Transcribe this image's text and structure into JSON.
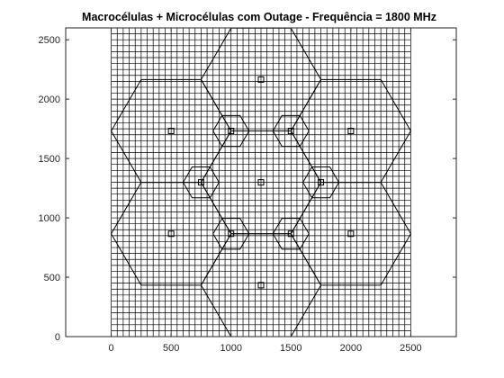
{
  "window": {
    "title": "Macrocélulas + Microcélulas com Outage - Frequência  = 1800 MHz"
  },
  "chart_data": {
    "type": "scatter",
    "title": "Macrocélulas + Microcélulas com Outage - Frequência  = 1800 MHz",
    "xlabel": "",
    "ylabel": "",
    "xlim": [
      -380,
      2880
    ],
    "ylim": [
      0,
      2600
    ],
    "xticks": [
      0,
      500,
      1000,
      1500,
      2000,
      2500
    ],
    "yticks": [
      0,
      500,
      1000,
      1500,
      2000,
      2500
    ],
    "grid": "uniform mesh over x 0–2500, y 0–2600, step 50",
    "grid_spacing": 50,
    "grid_extent": {
      "x": [
        0,
        2500
      ],
      "y": [
        0,
        2600
      ]
    },
    "macro_cells": {
      "shape": "hexagon (flat-top)",
      "radius": 500,
      "centers": [
        [
          1250,
          2165
        ],
        [
          500,
          1732
        ],
        [
          2000,
          1732
        ],
        [
          1250,
          1299
        ],
        [
          500,
          866
        ],
        [
          2000,
          866
        ],
        [
          1250,
          433
        ]
      ]
    },
    "micro_cells": {
      "shape": "hexagon (flat-top)",
      "radius": 150,
      "centers": [
        [
          1000,
          1732
        ],
        [
          1500,
          1732
        ],
        [
          750,
          1299
        ],
        [
          1750,
          1299
        ],
        [
          1000,
          866
        ],
        [
          1500,
          866
        ]
      ]
    },
    "station_markers": {
      "marker": "square",
      "points": [
        [
          1250,
          2165
        ],
        [
          500,
          1732
        ],
        [
          2000,
          1732
        ],
        [
          1250,
          1299
        ],
        [
          500,
          866
        ],
        [
          2000,
          866
        ],
        [
          1250,
          433
        ],
        [
          1000,
          1732
        ],
        [
          1500,
          1732
        ],
        [
          750,
          1299
        ],
        [
          1750,
          1299
        ],
        [
          1000,
          866
        ],
        [
          1500,
          866
        ]
      ]
    },
    "colors": {
      "lines": "#000000",
      "axes": "#262626",
      "background": "#ffffff"
    }
  }
}
